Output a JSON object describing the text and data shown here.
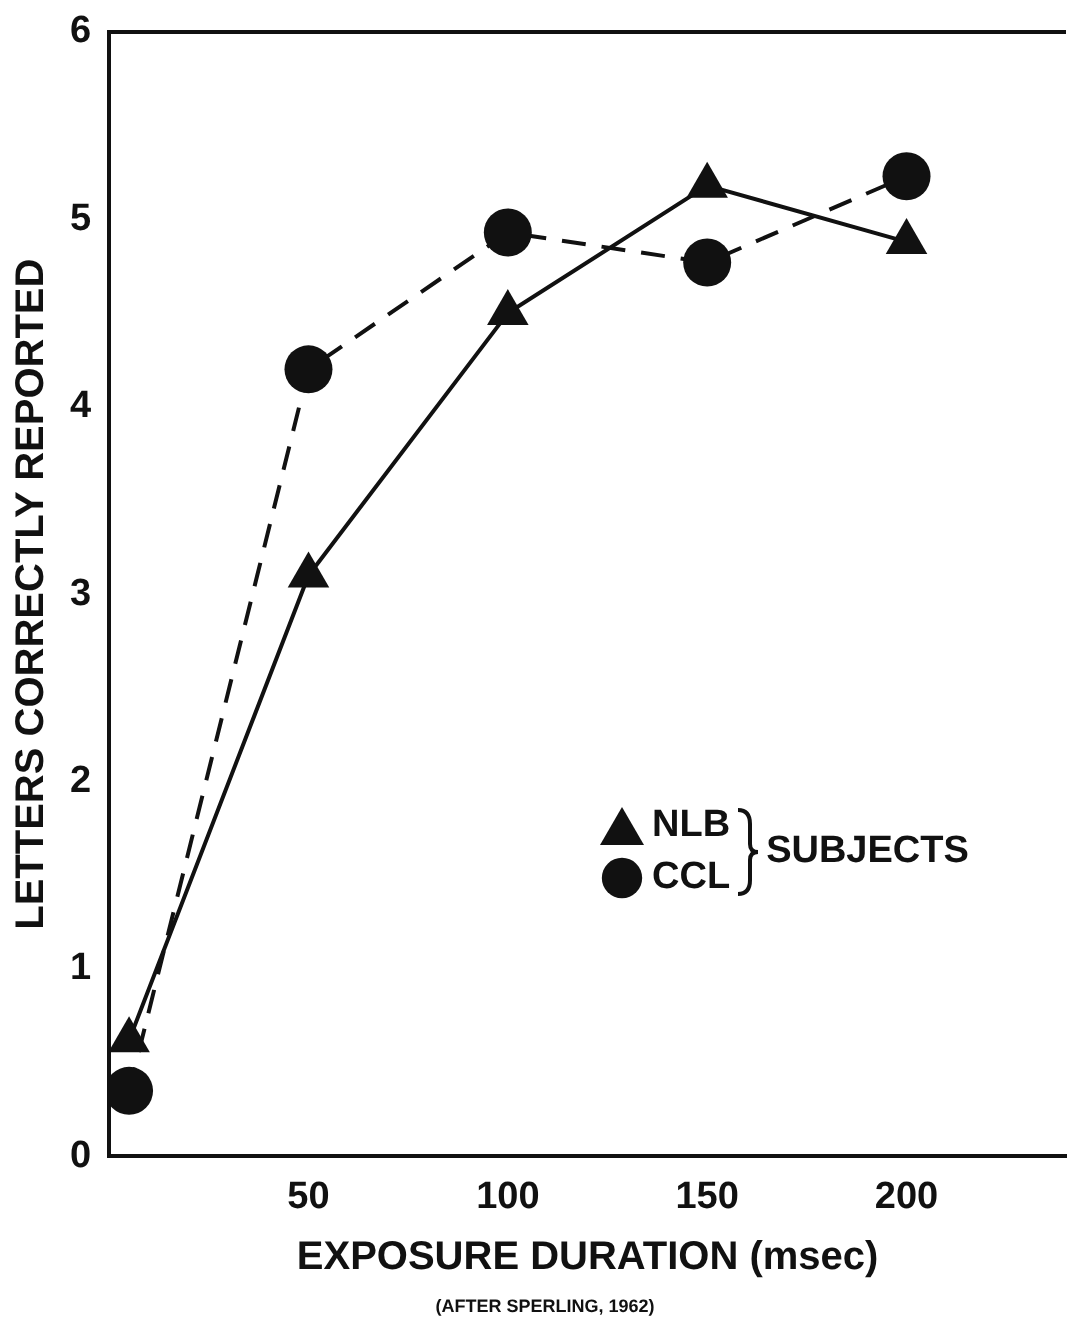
{
  "chart_data": {
    "type": "line",
    "xlabel": "EXPOSURE DURATION (msec)",
    "ylabel": "LETTERS CORRECTLY REPORTED",
    "legend_title": "SUBJECTS",
    "annotations": [
      "(AFTER SPERLING, 1962)"
    ],
    "x": [
      5,
      50,
      100,
      150,
      200
    ],
    "xlim": [
      0,
      240
    ],
    "xticks": [
      50,
      100,
      150,
      200
    ],
    "ylim": [
      0,
      6
    ],
    "yticks": [
      0,
      1,
      2,
      3,
      4,
      5,
      6
    ],
    "grid": false,
    "legend": "right",
    "series": [
      {
        "name": "NLB",
        "color": "#111111",
        "values": [
          0.62,
          3.1,
          4.5,
          5.18,
          4.88
        ],
        "marker": "triangle",
        "line_style": "solid"
      },
      {
        "name": "CCL",
        "color": "#111111",
        "values": [
          0.35,
          4.2,
          4.93,
          4.77,
          5.23
        ],
        "marker": "circle",
        "line_style": "dashed"
      }
    ]
  }
}
